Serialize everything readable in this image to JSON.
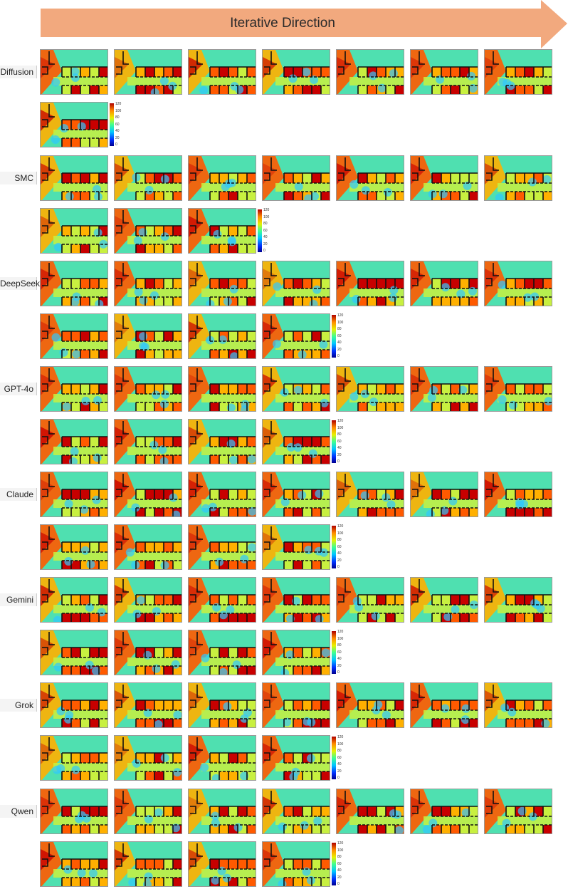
{
  "header": {
    "direction_label": "Iterative Direction",
    "arrow_color": "#f2a97e"
  },
  "colorbar": {
    "ticks": [
      "120",
      "100",
      "80",
      "60",
      "40",
      "20",
      "0"
    ]
  },
  "methods": [
    {
      "name": "Diffusion",
      "iterations": 8
    },
    {
      "name": "SMC",
      "iterations": 10
    },
    {
      "name": "DeepSeek",
      "iterations": 11
    },
    {
      "name": "GPT-4o",
      "iterations": 11
    },
    {
      "name": "Claude",
      "iterations": 11
    },
    {
      "name": "Gemini",
      "iterations": 11
    },
    {
      "name": "Grok",
      "iterations": 11
    },
    {
      "name": "Qwen",
      "iterations": 11
    }
  ],
  "heatmap_colors": {
    "cold": "#2fc8ff",
    "cool": "#4fe0b0",
    "mid": "#c8f040",
    "warm": "#ffb000",
    "hot": "#ff5a00",
    "peak": "#c80000",
    "walls": "#111111"
  }
}
